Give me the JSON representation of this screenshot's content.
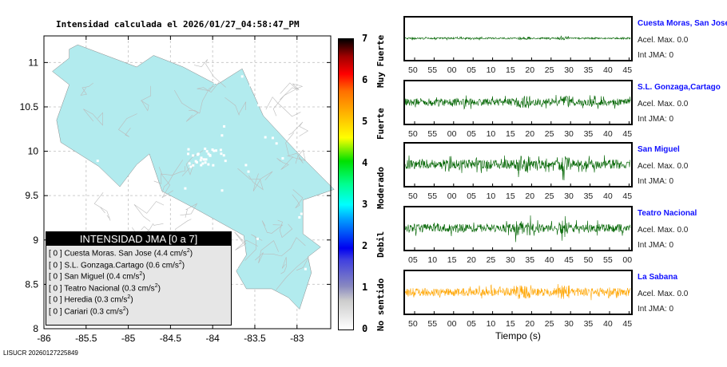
{
  "title": "Intensidad calculada el 2026/01/27_04:58:47_PM",
  "footer": "LISUCR 20260127225849",
  "legend": {
    "header": "INTENSIDAD JMA [0 a 7]",
    "items": [
      {
        "int": "[ 0 ]",
        "name": "Cuesta Moras. San Jose",
        "acc": "(4.4 cm/s",
        "sup": "2",
        ")": ")"
      },
      {
        "int": "[ 0 ]",
        "name": "S.L. Gonzaga.Cartago",
        "acc": "(0.6 cm/s",
        "sup": "2",
        ")": ")"
      },
      {
        "int": "[ 0 ]",
        "name": "San Miguel",
        "acc": "(0.4 cm/s",
        "sup": "2",
        ")": ")"
      },
      {
        "int": "[ 0 ]",
        "name": "Teatro Nacional",
        "acc": "(0.3 cm/s",
        "sup": "2",
        ")": ")"
      },
      {
        "int": "[ 0 ]",
        "name": "Heredia",
        "acc": "(0.3 cm/s",
        "sup": "2",
        ")": ")"
      },
      {
        "int": "[ 0 ]",
        "name": "Cariari",
        "acc": "(0.3 cm/s",
        "sup": "2",
        ")": ")"
      }
    ]
  },
  "colorbar": {
    "ticks": [
      "0",
      "1",
      "2",
      "3",
      "4",
      "5",
      "6",
      "7"
    ],
    "labels": [
      "No sentido",
      "Debil",
      "Moderado",
      "Fuerte",
      "Muy Fuerte"
    ]
  },
  "chart_data": [
    {
      "type": "map",
      "xlabel": "",
      "ylabel": "",
      "xlim": [
        -86,
        -82.6
      ],
      "ylim": [
        8,
        11.3
      ],
      "xticks": [
        "-86",
        "-85.5",
        "-85",
        "-84.5",
        "-84",
        "-83.5",
        "-83"
      ],
      "yticks": [
        "8",
        "8.5",
        "9",
        "9.5",
        "10",
        "10.5",
        "11"
      ],
      "fill": "#b2ebee"
    },
    {
      "type": "line",
      "xlabel": "Tiempo (s)",
      "stations": [
        {
          "name": "Cuesta Moras, San Jose",
          "acel": "Acel. Max. 0.0",
          "int": "Int JMA: 0",
          "color": "#006400",
          "amp": 0.08,
          "ticks": [
            "50",
            "55",
            "00",
            "05",
            "10",
            "15",
            "20",
            "25",
            "30",
            "35",
            "40",
            "45"
          ]
        },
        {
          "name": "S.L. Gonzaga,Cartago",
          "acel": "Acel. Max. 0.0",
          "int": "Int JMA: 0",
          "color": "#006400",
          "amp": 0.35,
          "ticks": [
            "50",
            "55",
            "00",
            "05",
            "10",
            "15",
            "20",
            "25",
            "30",
            "35",
            "40",
            "45"
          ]
        },
        {
          "name": "San Miguel",
          "acel": "Acel. Max. 0.0",
          "int": "Int JMA: 0",
          "color": "#006400",
          "amp": 0.45,
          "ticks": [
            "50",
            "55",
            "00",
            "05",
            "10",
            "15",
            "20",
            "25",
            "30",
            "35",
            "40",
            "45"
          ]
        },
        {
          "name": "Teatro Nacional",
          "acel": "Acel. Max. 0.0",
          "int": "Int JMA: 0",
          "color": "#006400",
          "amp": 0.4,
          "ticks": [
            "05",
            "10",
            "15",
            "20",
            "25",
            "30",
            "35",
            "40",
            "45",
            "50",
            "55",
            "00"
          ]
        },
        {
          "name": "La Sabana",
          "acel": "Acel. Max. 0.0",
          "int": "Int JMA: 0",
          "color": "#ffa500",
          "amp": 0.4,
          "ticks": [
            "50",
            "55",
            "00",
            "05",
            "10",
            "15",
            "20",
            "25",
            "30",
            "35",
            "40",
            "45"
          ]
        }
      ]
    }
  ]
}
